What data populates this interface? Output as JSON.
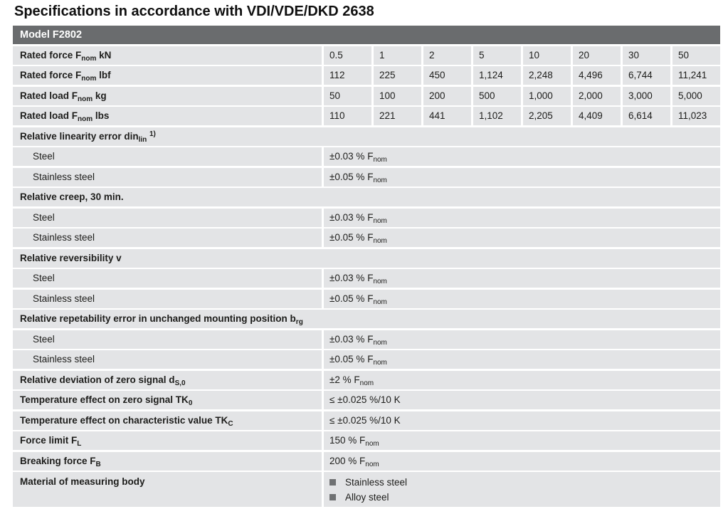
{
  "page_title": "Specifications in accordance with VDI/VDE/DKD 2638",
  "colors": {
    "header_bg": "#6a6c6e",
    "row_bg": "#e3e4e6",
    "header_text": "#ffffff",
    "text": "#1d1d1b",
    "bullet": "#6f7173"
  },
  "table": {
    "header": "Model F2802",
    "rows": [
      {
        "type": "numeric",
        "label": [
          {
            "t": "Rated force F"
          },
          {
            "t": "nom",
            "m": "sub"
          },
          {
            "t": " kN"
          }
        ],
        "values": [
          "0.5",
          "1",
          "2",
          "5",
          "10",
          "20",
          "30",
          "50"
        ]
      },
      {
        "type": "numeric",
        "label": [
          {
            "t": "Rated force F"
          },
          {
            "t": "nom",
            "m": "sub"
          },
          {
            "t": " lbf"
          }
        ],
        "values": [
          "112",
          "225",
          "450",
          "1,124",
          "2,248",
          "4,496",
          "6,744",
          "11,241"
        ]
      },
      {
        "type": "numeric",
        "label": [
          {
            "t": "Rated load F"
          },
          {
            "t": "nom",
            "m": "sub"
          },
          {
            "t": " kg"
          }
        ],
        "values": [
          "50",
          "100",
          "200",
          "500",
          "1,000",
          "2,000",
          "3,000",
          "5,000"
        ]
      },
      {
        "type": "numeric",
        "label": [
          {
            "t": "Rated load F"
          },
          {
            "t": "nom",
            "m": "sub"
          },
          {
            "t": " lbs"
          }
        ],
        "values": [
          "110",
          "221",
          "441",
          "1,102",
          "2,205",
          "4,409",
          "6,614",
          "11,023"
        ]
      },
      {
        "type": "section",
        "label": [
          {
            "t": "Relative linearity error din"
          },
          {
            "t": "lin",
            "m": "sub"
          },
          {
            "t": " "
          },
          {
            "t": "1)",
            "m": "sup"
          }
        ]
      },
      {
        "type": "kv",
        "indent": true,
        "label": [
          {
            "t": "Steel"
          }
        ],
        "value": [
          {
            "t": "±0.03 % F"
          },
          {
            "t": "nom",
            "m": "sub"
          }
        ]
      },
      {
        "type": "kv",
        "indent": true,
        "label": [
          {
            "t": "Stainless steel"
          }
        ],
        "value": [
          {
            "t": "±0.05 % F"
          },
          {
            "t": "nom",
            "m": "sub"
          }
        ]
      },
      {
        "type": "section",
        "label": [
          {
            "t": "Relative creep, 30 min."
          }
        ]
      },
      {
        "type": "kv",
        "indent": true,
        "label": [
          {
            "t": "Steel"
          }
        ],
        "value": [
          {
            "t": "±0.03 % F"
          },
          {
            "t": "nom",
            "m": "sub"
          }
        ]
      },
      {
        "type": "kv",
        "indent": true,
        "label": [
          {
            "t": "Stainless steel"
          }
        ],
        "value": [
          {
            "t": "±0.05 % F"
          },
          {
            "t": "nom",
            "m": "sub"
          }
        ]
      },
      {
        "type": "section",
        "label": [
          {
            "t": "Relative reversibility v"
          }
        ]
      },
      {
        "type": "kv",
        "indent": true,
        "label": [
          {
            "t": "Steel"
          }
        ],
        "value": [
          {
            "t": "±0.03 % F"
          },
          {
            "t": "nom",
            "m": "sub"
          }
        ]
      },
      {
        "type": "kv",
        "indent": true,
        "label": [
          {
            "t": "Stainless steel"
          }
        ],
        "value": [
          {
            "t": "±0.05 % F"
          },
          {
            "t": "nom",
            "m": "sub"
          }
        ]
      },
      {
        "type": "section",
        "label": [
          {
            "t": "Relative repetability error in unchanged mounting position b"
          },
          {
            "t": "rg",
            "m": "sub"
          }
        ]
      },
      {
        "type": "kv",
        "indent": true,
        "label": [
          {
            "t": "Steel"
          }
        ],
        "value": [
          {
            "t": "±0.03 % F"
          },
          {
            "t": "nom",
            "m": "sub"
          }
        ]
      },
      {
        "type": "kv",
        "indent": true,
        "label": [
          {
            "t": "Stainless steel"
          }
        ],
        "value": [
          {
            "t": "±0.05 % F"
          },
          {
            "t": "nom",
            "m": "sub"
          }
        ]
      },
      {
        "type": "kv",
        "indent": false,
        "label": [
          {
            "t": "Relative deviation of zero signal d"
          },
          {
            "t": "S,0",
            "m": "sub"
          }
        ],
        "value": [
          {
            "t": "±2 % F"
          },
          {
            "t": "nom",
            "m": "sub"
          }
        ]
      },
      {
        "type": "kv",
        "indent": false,
        "label": [
          {
            "t": "Temperature effect on zero signal TK"
          },
          {
            "t": "0",
            "m": "sub"
          }
        ],
        "value": [
          {
            "t": "≤ ±0.025 %/10 K"
          }
        ]
      },
      {
        "type": "kv",
        "indent": false,
        "label": [
          {
            "t": "Temperature effect on characteristic value TK"
          },
          {
            "t": "C",
            "m": "sub"
          }
        ],
        "value": [
          {
            "t": "≤ ±0.025 %/10 K"
          }
        ]
      },
      {
        "type": "kv",
        "indent": false,
        "label": [
          {
            "t": "Force limit F"
          },
          {
            "t": "L",
            "m": "sub"
          }
        ],
        "value": [
          {
            "t": "150 % F"
          },
          {
            "t": "nom",
            "m": "sub"
          }
        ]
      },
      {
        "type": "kv",
        "indent": false,
        "label": [
          {
            "t": "Breaking force F"
          },
          {
            "t": "B",
            "m": "sub"
          }
        ],
        "value": [
          {
            "t": "200 % F"
          },
          {
            "t": "nom",
            "m": "sub"
          }
        ]
      },
      {
        "type": "list",
        "label": [
          {
            "t": "Material of measuring body"
          }
        ],
        "items": [
          "Stainless steel",
          "Alloy steel"
        ]
      }
    ]
  }
}
